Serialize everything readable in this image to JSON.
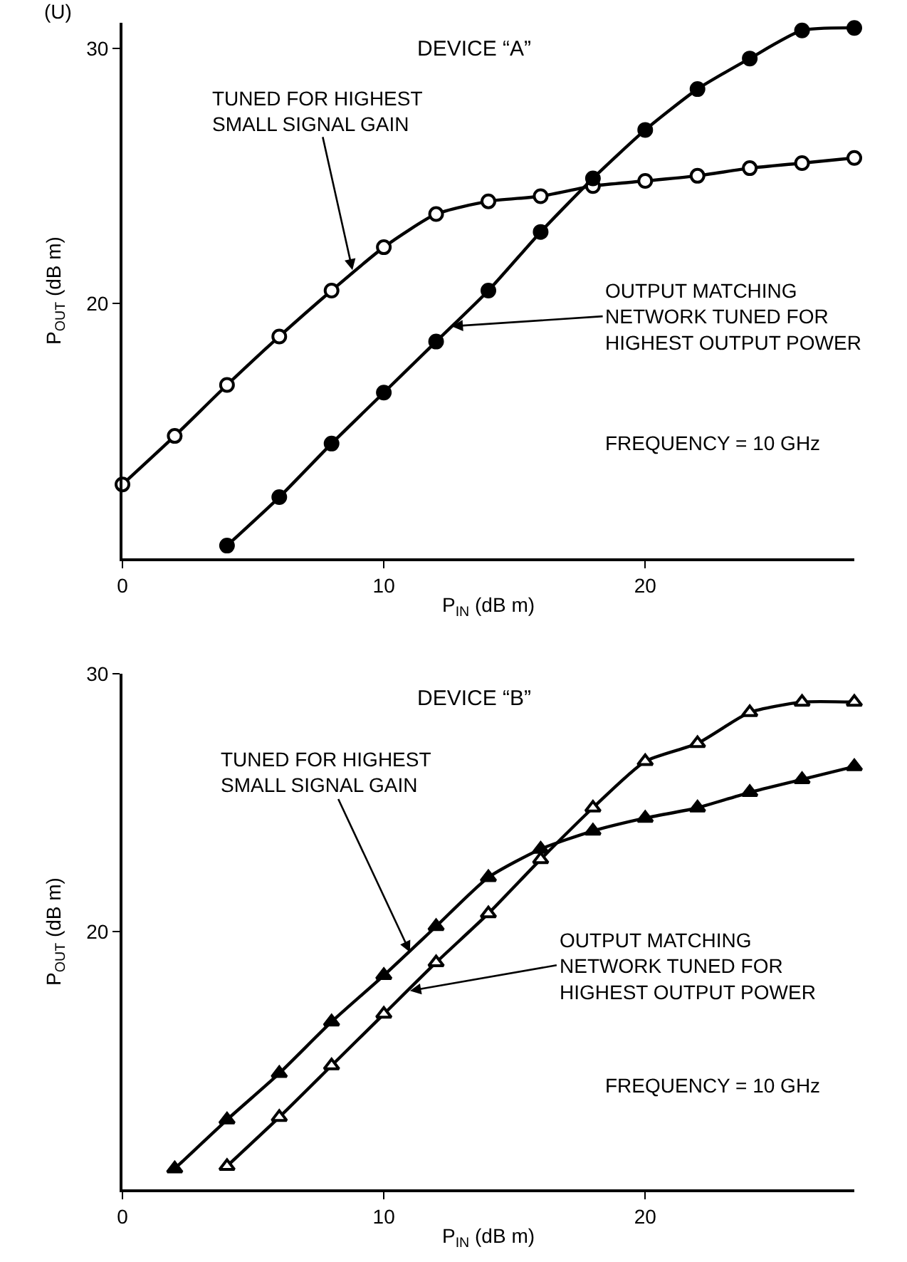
{
  "chart_data": [
    {
      "type": "line",
      "title": "DEVICE “A”",
      "xlabel": "P$_{IN}$ (dB m)",
      "ylabel": "P$_{OUT}$ (dB m)",
      "xlim": [
        0,
        28
      ],
      "xticks": [
        0,
        10,
        20
      ],
      "ylim": [
        10,
        31
      ],
      "yticks": [
        20,
        30
      ],
      "legend": false,
      "line_style": "solid",
      "series": [
        {
          "color": "#000000",
          "marker": "circle",
          "x": [
            0,
            2,
            4,
            6,
            8,
            10,
            12,
            14,
            16,
            18,
            20,
            22,
            24,
            26,
            28
          ],
          "values": [
            12.9,
            14.8,
            16.8,
            18.7,
            20.5,
            22.2,
            23.5,
            24.0,
            24.2,
            24.6,
            24.8,
            25.0,
            25.3,
            25.5,
            25.7
          ]
        },
        {
          "color": "#000000",
          "marker": "circle",
          "x": [
            4,
            6,
            8,
            10,
            12,
            14,
            16,
            18,
            20,
            22,
            24,
            26,
            28
          ],
          "values": [
            10.5,
            12.4,
            14.5,
            16.5,
            18.5,
            20.5,
            22.8,
            24.9,
            26.8,
            28.4,
            29.6,
            30.7,
            30.8
          ]
        }
      ],
      "annotations": [
        "(U)",
        {
          "text": "TUNED FOR HIGHEST\nSMALL SIGNAL GAIN",
          "x": 8.8,
          "y": 21.3
        },
        {
          "text": "OUTPUT MATCHING\nNETWORK TUNED FOR\nHIGHEST OUTPUT POWER",
          "x": 12.6,
          "y": 19.1
        },
        "FREQUENCY = 10 GHz"
      ]
    },
    {
      "type": "line",
      "title": "DEVICE “B”",
      "xlabel": "P$_{IN}$ (dB m)",
      "ylabel": "P$_{OUT}$ (dB m)",
      "xlim": [
        0,
        28
      ],
      "xticks": [
        0,
        10,
        20
      ],
      "ylim": [
        10,
        30
      ],
      "yticks": [
        20,
        30
      ],
      "legend": false,
      "line_style": "solid",
      "series": [
        {
          "color": "#000000",
          "marker": "triangle",
          "x": [
            2,
            4,
            6,
            8,
            10,
            12,
            14,
            16,
            18,
            20,
            22,
            24,
            26,
            28
          ],
          "values": [
            10.8,
            12.7,
            14.5,
            16.5,
            18.3,
            20.2,
            22.1,
            23.2,
            23.9,
            24.4,
            24.8,
            25.4,
            25.9,
            26.4
          ]
        },
        {
          "color": "#000000",
          "marker": "triangle",
          "x": [
            4,
            6,
            8,
            10,
            12,
            14,
            16,
            18,
            20,
            22,
            24,
            26,
            28
          ],
          "values": [
            10.9,
            12.8,
            14.8,
            16.8,
            18.8,
            20.7,
            22.8,
            24.8,
            26.6,
            27.3,
            28.5,
            28.9,
            28.9
          ]
        }
      ],
      "annotations": [
        {
          "text": "TUNED FOR HIGHEST\nSMALL SIGNAL GAIN",
          "x": 11.0,
          "y": 19.2
        },
        {
          "text": "OUTPUT MATCHING\nNETWORK TUNED FOR\nHIGHEST OUTPUT POWER",
          "x": 11.0,
          "y": 17.7
        },
        "FREQUENCY = 10 GHz"
      ]
    }
  ]
}
